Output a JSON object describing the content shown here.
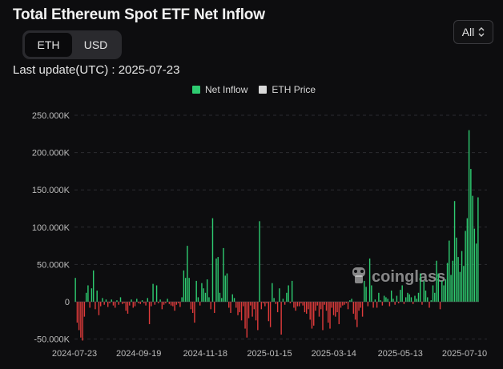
{
  "header": {
    "title": "Total Ethereum Spot ETF Net Inflow",
    "last_update": "Last update(UTC) : 2025-07-23"
  },
  "unit_toggle": {
    "options": [
      {
        "label": "ETH",
        "active": true
      },
      {
        "label": "USD",
        "active": false
      }
    ]
  },
  "range_select": {
    "value": "All"
  },
  "legend": {
    "items": [
      {
        "label": "Net Inflow",
        "color": "#2ecc71"
      },
      {
        "label": "ETH Price",
        "color": "#d9d9d9"
      }
    ]
  },
  "watermark": {
    "text": "coinglass"
  },
  "colors": {
    "positive": "#2ecc71",
    "negative": "#e03b3b",
    "grid": "#2c2c30",
    "zero_line": "#5a5a5e"
  },
  "chart_data": {
    "type": "bar",
    "title": "Total Ethereum Spot ETF Net Inflow",
    "xlabel": "",
    "ylabel": "",
    "ylim": [
      -50000,
      250000
    ],
    "grid": true,
    "legend_position": "top-center",
    "y_ticks": [
      "-50.000K",
      "0",
      "50.000K",
      "100.000K",
      "150.000K",
      "200.000K",
      "250.000K"
    ],
    "x_ticks": [
      "2024-07-23",
      "2024-09-19",
      "2024-11-18",
      "2025-01-15",
      "2025-03-14",
      "2025-05-13",
      "2025-07-10"
    ],
    "x_range": [
      "2024-07-23",
      "2025-07-23"
    ],
    "series": [
      {
        "name": "Net Inflow",
        "values": [
          32000,
          -28000,
          -38000,
          -48000,
          -52000,
          -20000,
          12000,
          22000,
          -8000,
          18000,
          42000,
          -10000,
          15000,
          -18000,
          -6000,
          5000,
          -4000,
          3000,
          -7000,
          -2000,
          3000,
          -5000,
          -8000,
          2000,
          -4000,
          6000,
          -3000,
          -2000,
          -12000,
          -16000,
          -5000,
          3000,
          -8000,
          -6000,
          4000,
          -2000,
          -3000,
          2000,
          -2000,
          -5000,
          5000,
          -30000,
          -6000,
          24000,
          -4000,
          22000,
          -2000,
          3000,
          -10000,
          -4000,
          -2000,
          4000,
          -3000,
          -5000,
          -6000,
          -12000,
          -4000,
          -2000,
          -7000,
          6000,
          42000,
          32000,
          75000,
          32000,
          -10000,
          -15000,
          -28000,
          28000,
          6000,
          -5000,
          25000,
          18000,
          12000,
          30000,
          6000,
          -10000,
          112000,
          -15000,
          58000,
          60000,
          12000,
          5000,
          72000,
          35000,
          38000,
          -8000,
          -15000,
          10000,
          5000,
          -8000,
          -18000,
          -14000,
          -25000,
          -6000,
          -36000,
          -48000,
          -22000,
          -5000,
          -20000,
          -10000,
          -25000,
          -38000,
          108000,
          -10000,
          -2000,
          -6000,
          -2000,
          -26000,
          -34000,
          25000,
          5000,
          -3000,
          -14000,
          18000,
          -44000,
          4000,
          -4000,
          12000,
          22000,
          -2000,
          28000,
          -8000,
          -12000,
          -6000,
          -6000,
          -2000,
          -5000,
          -14000,
          -16000,
          -10000,
          -24000,
          -36000,
          -32000,
          -12000,
          -5000,
          -20000,
          -10000,
          -38000,
          -4000,
          -12000,
          -28000,
          -36000,
          -8000,
          -18000,
          -20000,
          -14000,
          -30000,
          -8000,
          -5000,
          -4000,
          -2000,
          -10000,
          2000,
          4000,
          -16000,
          -24000,
          -34000,
          -12000,
          -8000,
          -20000,
          28000,
          20000,
          -6000,
          58000,
          22000,
          -8000,
          3000,
          -8000,
          12000,
          2000,
          -5000,
          8000,
          6000,
          4000,
          -6000,
          15000,
          4000,
          -4000,
          8000,
          -2000,
          16000,
          22000,
          -3000,
          6000,
          12000,
          10000,
          6000,
          -3000,
          8000,
          4000,
          12000,
          38000,
          -4000,
          28000,
          15000,
          6000,
          -8000,
          2000,
          22000,
          12000,
          55000,
          38000,
          -10000,
          28000,
          22000,
          30000,
          52000,
          82000,
          36000,
          55000,
          135000,
          86000,
          60000,
          40000,
          68000,
          48000,
          95000,
          112000,
          230000,
          178000,
          142000,
          98000,
          78000,
          140000
        ]
      }
    ]
  }
}
